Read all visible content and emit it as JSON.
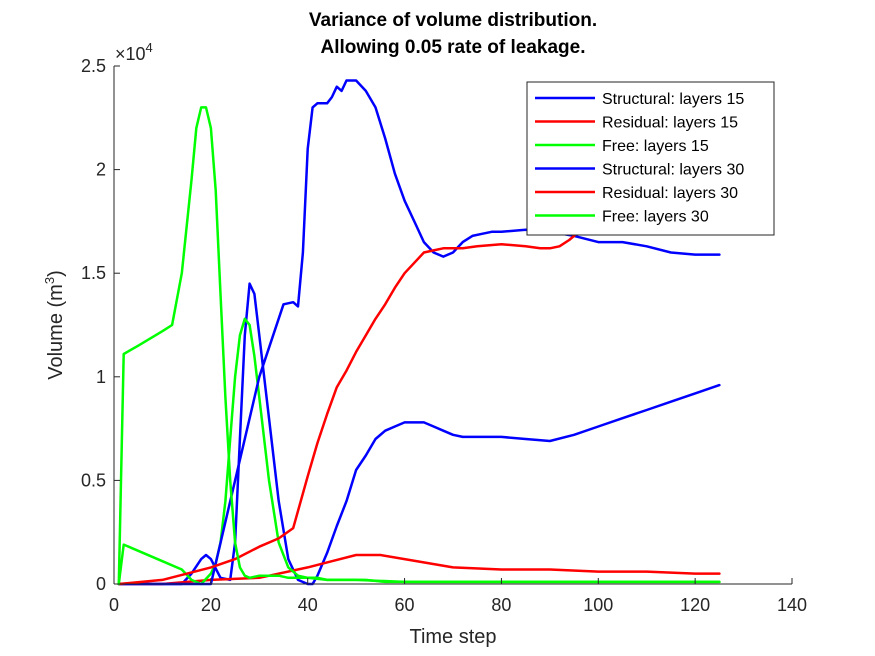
{
  "chart_data": {
    "type": "line",
    "title": [
      "Variance of volume distribution.",
      "Allowing 0.05 rate of leakage."
    ],
    "xlabel": "Time step",
    "ylabel_main": "Volume (m",
    "ylabel_sup": "3",
    "ylabel_close": ")",
    "y_exponent_prefix": "×10",
    "y_exponent_power": "4",
    "xlim": [
      0,
      140
    ],
    "ylim": [
      0,
      2.5
    ],
    "x_ticks": [
      0,
      20,
      40,
      60,
      80,
      100,
      120,
      140
    ],
    "y_ticks": [
      0,
      0.5,
      1,
      1.5,
      2,
      2.5
    ],
    "x_tick_labels": [
      "0",
      "20",
      "40",
      "60",
      "80",
      "100",
      "120",
      "140"
    ],
    "y_tick_labels": [
      "0",
      "0.5",
      "1",
      "1.5",
      "2",
      "2.5"
    ],
    "y_scale_note": "values in units of 10^4 m^3",
    "grid": false,
    "legend_position": "top-right",
    "series": [
      {
        "name": "Structural: layers 15",
        "color": "#0000ff",
        "x": [
          1,
          10,
          14,
          16,
          18,
          19,
          20,
          22,
          24,
          25,
          26,
          27,
          28,
          29,
          30,
          32,
          34,
          36,
          38,
          40,
          41,
          42,
          44,
          46,
          48,
          50,
          52,
          54,
          56,
          58,
          60,
          62,
          64,
          66,
          68,
          70,
          72,
          74,
          76,
          78,
          80,
          85,
          90,
          95,
          100,
          105,
          110,
          115,
          120,
          125
        ],
        "y": [
          0,
          0,
          0,
          0.05,
          0.12,
          0.14,
          0.12,
          0.03,
          0.02,
          0.2,
          0.7,
          1.2,
          1.45,
          1.4,
          1.2,
          0.8,
          0.4,
          0.12,
          0.02,
          0,
          0,
          0.04,
          0.15,
          0.28,
          0.4,
          0.55,
          0.62,
          0.7,
          0.74,
          0.76,
          0.78,
          0.78,
          0.78,
          0.76,
          0.74,
          0.72,
          0.71,
          0.71,
          0.71,
          0.71,
          0.71,
          0.7,
          0.69,
          0.72,
          0.76,
          0.8,
          0.84,
          0.88,
          0.92,
          0.96
        ]
      },
      {
        "name": "Residual: layers 15",
        "color": "#ff0000",
        "x": [
          1,
          10,
          20,
          30,
          40,
          45,
          50,
          55,
          60,
          70,
          80,
          90,
          100,
          110,
          120,
          125
        ],
        "y": [
          0,
          0,
          0.02,
          0.03,
          0.08,
          0.11,
          0.14,
          0.14,
          0.12,
          0.08,
          0.07,
          0.07,
          0.06,
          0.06,
          0.05,
          0.05
        ]
      },
      {
        "name": "Free: layers 15",
        "color": "#00ff00",
        "x": [
          1,
          2,
          5,
          10,
          14,
          16,
          18,
          20,
          21,
          22,
          23,
          24,
          25,
          26,
          27,
          28,
          29,
          30,
          32,
          34,
          36,
          38,
          40,
          44,
          48,
          52,
          56,
          60,
          70,
          80,
          90,
          100,
          110,
          125
        ],
        "y": [
          0,
          0.19,
          0.16,
          0.11,
          0.07,
          0.02,
          0.0,
          0.05,
          0.1,
          0.2,
          0.4,
          0.7,
          1.0,
          1.2,
          1.28,
          1.25,
          1.1,
          0.9,
          0.5,
          0.2,
          0.08,
          0.04,
          0.03,
          0.02,
          0.02,
          0.02,
          0.01,
          0.01,
          0.01,
          0.01,
          0.01,
          0.01,
          0.01,
          0.01
        ]
      },
      {
        "name": "Structural: layers 30",
        "color": "#0000ff",
        "x": [
          1,
          20,
          30,
          35,
          37,
          38,
          39,
          40,
          41,
          42,
          44,
          45,
          46,
          47,
          48,
          50,
          52,
          54,
          56,
          58,
          60,
          62,
          64,
          66,
          68,
          70,
          72,
          74,
          76,
          78,
          80,
          85,
          90,
          95,
          100,
          105,
          110,
          115,
          120,
          125
        ],
        "y": [
          0,
          0,
          1.0,
          1.35,
          1.36,
          1.34,
          1.6,
          2.1,
          2.3,
          2.32,
          2.32,
          2.35,
          2.4,
          2.38,
          2.43,
          2.43,
          2.38,
          2.3,
          2.15,
          1.98,
          1.85,
          1.75,
          1.65,
          1.6,
          1.58,
          1.6,
          1.65,
          1.68,
          1.69,
          1.7,
          1.7,
          1.71,
          1.7,
          1.68,
          1.65,
          1.65,
          1.63,
          1.6,
          1.59,
          1.59
        ]
      },
      {
        "name": "Residual: layers 30",
        "color": "#ff0000",
        "x": [
          1,
          10,
          20,
          25,
          30,
          34,
          37,
          40,
          42,
          44,
          46,
          48,
          50,
          52,
          54,
          56,
          58,
          60,
          62,
          64,
          66,
          68,
          70,
          72,
          75,
          80,
          85,
          88,
          90,
          92,
          94,
          96,
          98
        ],
        "y": [
          0,
          0.02,
          0.08,
          0.12,
          0.18,
          0.22,
          0.27,
          0.52,
          0.68,
          0.82,
          0.95,
          1.03,
          1.12,
          1.2,
          1.28,
          1.35,
          1.43,
          1.5,
          1.55,
          1.6,
          1.61,
          1.62,
          1.62,
          1.62,
          1.63,
          1.64,
          1.63,
          1.62,
          1.62,
          1.63,
          1.66,
          1.7,
          1.73
        ]
      },
      {
        "name": "Free: layers 30",
        "color": "#00ff00",
        "x": [
          1,
          2,
          5,
          10,
          12,
          14,
          16,
          17,
          18,
          19,
          20,
          21,
          22,
          23,
          24,
          25,
          26,
          27,
          28,
          30,
          32,
          34,
          36,
          38,
          40,
          42,
          44,
          50,
          60,
          70,
          80,
          90,
          100,
          110,
          125
        ],
        "y": [
          0,
          1.11,
          1.15,
          1.22,
          1.25,
          1.5,
          1.95,
          2.2,
          2.3,
          2.3,
          2.2,
          1.9,
          1.4,
          0.9,
          0.5,
          0.2,
          0.08,
          0.04,
          0.03,
          0.04,
          0.04,
          0.04,
          0.03,
          0.03,
          0.03,
          0.03,
          0.02,
          0.02,
          0.01,
          0.01,
          0.01,
          0.01,
          0.01,
          0.01,
          0.01
        ]
      }
    ]
  }
}
